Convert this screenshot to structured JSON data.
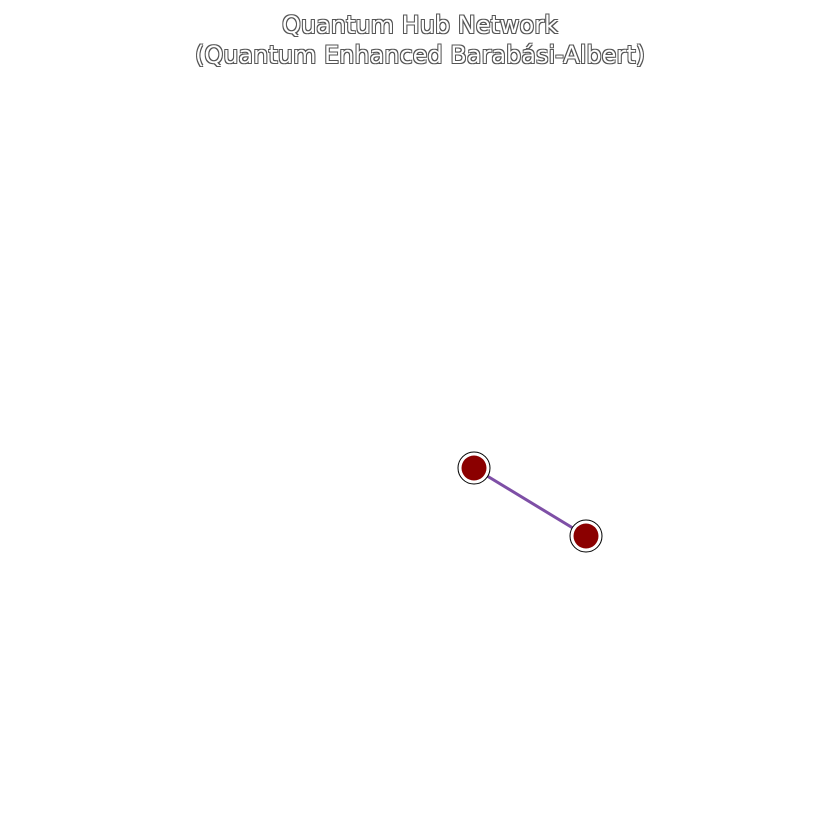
{
  "figure": {
    "title_line1": "Quantum Hub Network",
    "title_line2": "(Quantum Enhanced Barabási-Albert)"
  },
  "graph": {
    "node_count": 2,
    "edge_count": 1,
    "colors": {
      "node_fill": "#8b0000",
      "node_ring": "#ffffff",
      "node_outline": "#000000",
      "edge": "#7e4fa6"
    }
  }
}
